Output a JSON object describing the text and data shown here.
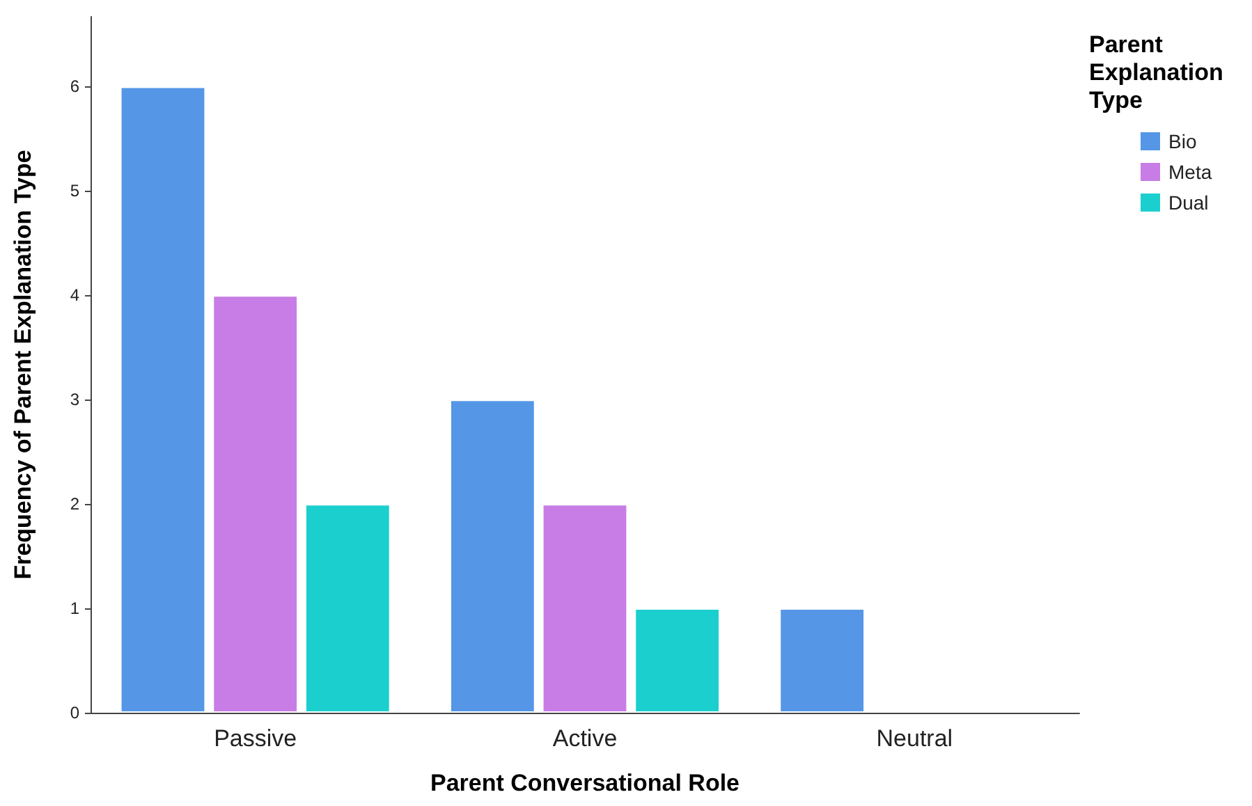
{
  "chart_data": {
    "type": "bar",
    "xlabel": "Parent Conversational Role",
    "ylabel": "Frequency of Parent Explanation Type",
    "legend_title": "Parent Explanation Type",
    "categories": [
      "Passive",
      "Active",
      "Neutral"
    ],
    "series": [
      {
        "name": "Bio",
        "color": "#5596e6",
        "values": [
          6,
          3,
          1
        ]
      },
      {
        "name": "Meta",
        "color": "#c87de6",
        "values": [
          4,
          2,
          null
        ]
      },
      {
        "name": "Dual",
        "color": "#1ccfcf",
        "values": [
          2,
          1,
          null
        ]
      }
    ],
    "ylim": [
      0,
      6.67
    ],
    "yticks": [
      0,
      1,
      2,
      3,
      4,
      5,
      6
    ],
    "grid": false,
    "legend": "top right"
  }
}
